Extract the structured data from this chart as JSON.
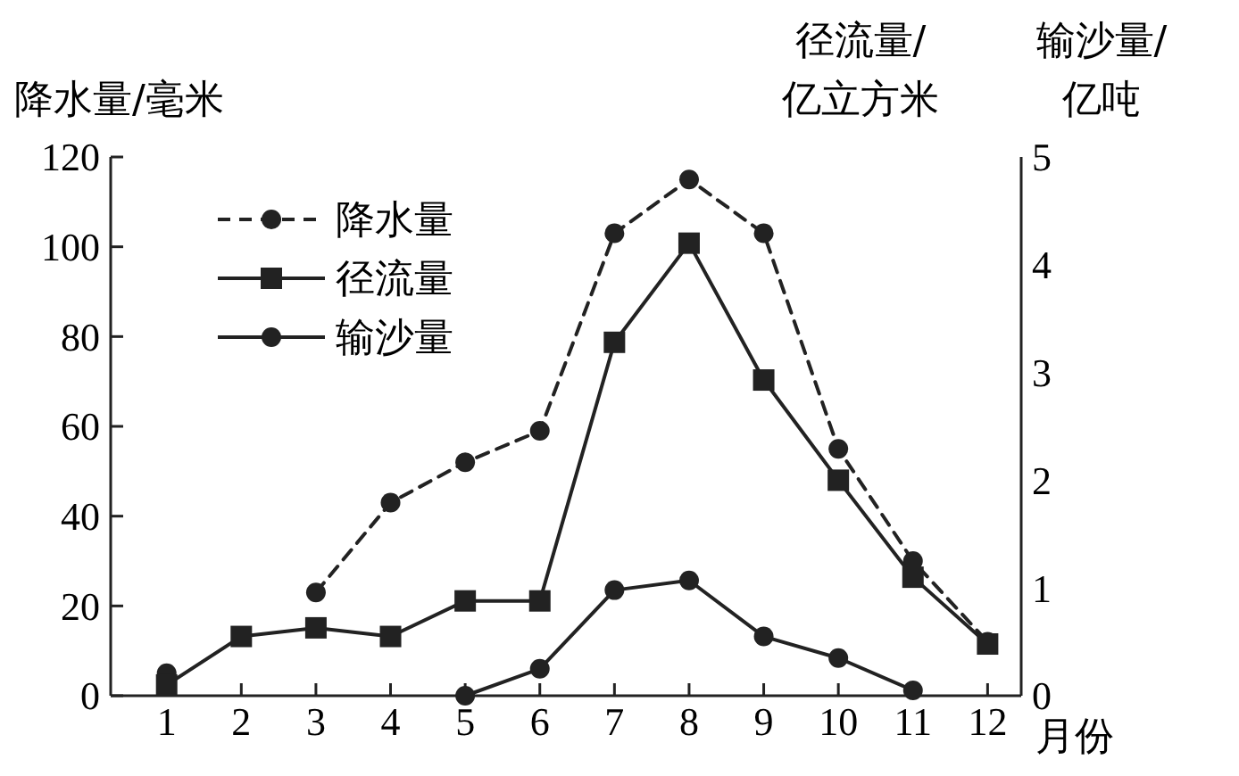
{
  "chart_data": {
    "type": "line",
    "ylabel": "降水量/毫米",
    "y2label": "径流量/亿立方米",
    "xlabel": "月份",
    "annotations": [
      "输沙量/亿吨"
    ],
    "x": [
      1,
      2,
      3,
      4,
      5,
      6,
      7,
      8,
      9,
      10,
      11,
      12
    ],
    "xlim": [
      0.25,
      12.45
    ],
    "xticks": [
      1,
      2,
      3,
      4,
      5,
      6,
      7,
      8,
      9,
      10,
      11,
      12
    ],
    "ylim": [
      0,
      120
    ],
    "yticks": [
      0,
      20,
      40,
      60,
      80,
      100,
      120
    ],
    "y2lim": [
      0,
      5
    ],
    "y2ticks": [
      0,
      1,
      2,
      3,
      4,
      5
    ],
    "legend": "top left",
    "grid": false,
    "series": [
      {
        "name": "降水量",
        "color": "#222222",
        "marker": "circle",
        "line_style": "dashed",
        "values": [
          5,
          null,
          23,
          43,
          52,
          59,
          103,
          115,
          103,
          55,
          30,
          12
        ]
      },
      {
        "name": "径流量",
        "color": "#222222",
        "marker": "square",
        "line_style": "solid",
        "axis": "y2",
        "values": [
          0.1,
          0.55,
          0.63,
          0.55,
          0.88,
          0.88,
          3.28,
          4.2,
          2.93,
          2.0,
          1.1,
          0.48
        ]
      },
      {
        "name": "输沙量",
        "color": "#222222",
        "marker": "circle",
        "line_style": "solid",
        "axis": "y2",
        "values": [
          null,
          null,
          null,
          null,
          0,
          0.25,
          0.98,
          1.07,
          0.55,
          0.35,
          0.05,
          null
        ]
      }
    ]
  }
}
